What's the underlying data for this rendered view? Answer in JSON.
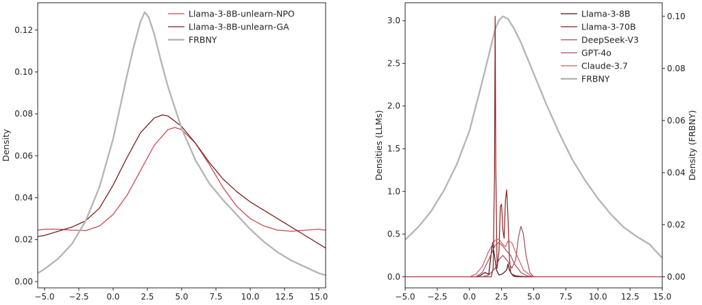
{
  "chart_data": [
    {
      "type": "line",
      "title": "",
      "xlabel": "",
      "ylabel": "Density",
      "xlim": [
        -5.5,
        15.5
      ],
      "ylim": [
        -0.003,
        0.133
      ],
      "xticks": [
        -5.0,
        -2.5,
        0.0,
        2.5,
        5.0,
        7.5,
        10.0,
        12.5,
        15.0
      ],
      "xtick_labels": [
        "−5.0",
        "−2.5",
        "0.0",
        "2.5",
        "5.0",
        "7.5",
        "10.0",
        "12.5",
        "15.0"
      ],
      "yticks": [
        0.0,
        0.02,
        0.04,
        0.06,
        0.08,
        0.1,
        0.12
      ],
      "ytick_labels": [
        "0.00",
        "0.02",
        "0.04",
        "0.06",
        "0.08",
        "0.10",
        "0.12"
      ],
      "grid": false,
      "legend": "top-right",
      "series": [
        {
          "name": "Llama-3-8B-unlearn-NPO",
          "color": "#c8474f",
          "width": 1.3,
          "x": [
            -5.5,
            -5,
            -4,
            -3,
            -2,
            -1,
            0,
            1,
            2,
            3,
            4,
            4.5,
            5,
            6,
            7,
            8,
            9,
            10,
            11,
            12,
            13,
            14,
            15,
            15.5
          ],
          "y": [
            0.0245,
            0.025,
            0.025,
            0.0245,
            0.0243,
            0.0265,
            0.032,
            0.041,
            0.053,
            0.065,
            0.0725,
            0.0735,
            0.0725,
            0.066,
            0.056,
            0.045,
            0.036,
            0.03,
            0.0265,
            0.0245,
            0.024,
            0.0245,
            0.025,
            0.0245
          ]
        },
        {
          "name": "Llama-3-8B-unlearn-GA",
          "color": "#7a1a1a",
          "width": 1.3,
          "x": [
            -5.5,
            -5,
            -4,
            -3,
            -2,
            -1,
            0,
            1,
            2,
            3,
            3.6,
            4,
            5,
            6,
            7,
            8,
            9,
            10,
            11,
            12,
            13,
            14,
            15,
            15.5
          ],
          "y": [
            0.0215,
            0.022,
            0.024,
            0.026,
            0.029,
            0.035,
            0.046,
            0.059,
            0.071,
            0.078,
            0.0795,
            0.079,
            0.074,
            0.066,
            0.057,
            0.049,
            0.043,
            0.038,
            0.034,
            0.03,
            0.026,
            0.022,
            0.018,
            0.016
          ]
        },
        {
          "name": "FRBNY",
          "color": "#b5b5b5",
          "width": 2.4,
          "x": [
            -5.5,
            -5,
            -4,
            -3,
            -2,
            -1,
            0,
            1,
            1.5,
            2,
            2.3,
            2.6,
            3,
            3.5,
            4,
            5,
            6,
            7,
            8,
            9,
            10,
            11,
            12,
            13,
            14,
            15,
            15.5
          ],
          "y": [
            0.004,
            0.006,
            0.011,
            0.018,
            0.029,
            0.045,
            0.068,
            0.098,
            0.112,
            0.124,
            0.1285,
            0.126,
            0.118,
            0.105,
            0.093,
            0.073,
            0.058,
            0.047,
            0.039,
            0.032,
            0.025,
            0.019,
            0.014,
            0.01,
            0.007,
            0.004,
            0.003
          ]
        }
      ]
    },
    {
      "type": "line",
      "title": "",
      "xlabel": "",
      "ylabel": "Densities (LLMs)",
      "y2label": "Density (FRBNY)",
      "xlim": [
        -5.0,
        15.0
      ],
      "ylim": [
        -0.13,
        3.21
      ],
      "y2lim": [
        -0.00426,
        0.1052
      ],
      "xticks": [
        -5.0,
        -2.5,
        0.0,
        2.5,
        5.0,
        7.5,
        10.0,
        12.5,
        15.0
      ],
      "xtick_labels": [
        "−5.0",
        "−2.5",
        "0.0",
        "2.5",
        "5.0",
        "7.5",
        "10.0",
        "12.5",
        "15.0"
      ],
      "yticks": [
        0.0,
        0.5,
        1.0,
        1.5,
        2.0,
        2.5,
        3.0
      ],
      "ytick_labels": [
        "0.0",
        "0.5",
        "1.0",
        "1.5",
        "2.0",
        "2.5",
        "3.0"
      ],
      "y2ticks": [
        0.0,
        0.02,
        0.04,
        0.06,
        0.08,
        0.1
      ],
      "y2tick_labels": [
        "0.00",
        "0.02",
        "0.04",
        "0.06",
        "0.08",
        "0.10"
      ],
      "grid": false,
      "legend": "top-right",
      "series": [
        {
          "name": "Llama-3-8B",
          "color": "#3b1010",
          "width": 1.2,
          "axis": "left",
          "x": [
            -5,
            0.5,
            0.8,
            1.0,
            1.2,
            1.5,
            1.8,
            1.95,
            2.1,
            2.3,
            2.5,
            2.7,
            2.9,
            3.0,
            3.1,
            3.3,
            3.6,
            4.0,
            4.5,
            15
          ],
          "y": [
            0,
            0,
            0.01,
            0.03,
            0.05,
            0.03,
            0.4,
            0.25,
            0.08,
            0.02,
            0.03,
            0.05,
            0.08,
            0.15,
            0.08,
            0.03,
            0.01,
            0.005,
            0,
            0
          ]
        },
        {
          "name": "Llama-3-70B",
          "color": "#8a1c1c",
          "width": 1.2,
          "axis": "left",
          "x": [
            -5,
            1.5,
            1.7,
            1.85,
            1.95,
            2.0,
            2.05,
            2.15,
            2.3,
            2.4,
            2.5,
            2.6,
            2.7,
            2.8,
            2.9,
            3.0,
            3.1,
            3.2,
            3.4,
            3.6,
            15
          ],
          "y": [
            0,
            0,
            0,
            0.1,
            1.2,
            3.05,
            1.3,
            0.1,
            0.3,
            0.82,
            0.85,
            0.55,
            0.45,
            0.9,
            1.02,
            0.7,
            0.25,
            0.05,
            0.01,
            0,
            0
          ]
        },
        {
          "name": "DeepSeek-V3",
          "color": "#a3485a",
          "width": 1.2,
          "axis": "left",
          "x": [
            -5,
            1.0,
            1.5,
            2.0,
            2.3,
            2.6,
            3.0,
            3.3,
            3.6,
            3.8,
            4.0,
            4.2,
            4.4,
            4.7,
            5.0,
            15
          ],
          "y": [
            0,
            0,
            0.02,
            0.1,
            0.2,
            0.25,
            0.18,
            0.1,
            0.2,
            0.45,
            0.59,
            0.5,
            0.25,
            0.05,
            0,
            0
          ]
        },
        {
          "name": "GPT-4o",
          "color": "#b0465e",
          "width": 1.2,
          "axis": "left",
          "x": [
            -5,
            0.5,
            1.0,
            1.5,
            2.0,
            2.3,
            2.6,
            2.9,
            3.2,
            3.5,
            4.0,
            4.5,
            5.0,
            15
          ],
          "y": [
            0,
            0,
            0.05,
            0.2,
            0.37,
            0.4,
            0.36,
            0.3,
            0.25,
            0.15,
            0.05,
            0.01,
            0,
            0
          ]
        },
        {
          "name": "Claude-3.7",
          "color": "#cf5a5a",
          "width": 1.2,
          "axis": "left",
          "x": [
            -5,
            0,
            0.5,
            1.0,
            1.5,
            2.0,
            2.3,
            2.6,
            2.8,
            3.0,
            3.3,
            3.7,
            4.2,
            4.8,
            5.3,
            15
          ],
          "y": [
            0,
            0,
            0.03,
            0.12,
            0.3,
            0.43,
            0.44,
            0.38,
            0.35,
            0.42,
            0.4,
            0.25,
            0.08,
            0.01,
            0,
            0
          ]
        },
        {
          "name": "FRBNY",
          "color": "#b5b5b5",
          "width": 2.4,
          "axis": "right",
          "x": [
            -5,
            -4,
            -3,
            -2,
            -1,
            0,
            1,
            1.5,
            2,
            2.3,
            2.6,
            3,
            3.5,
            4,
            5,
            6,
            7,
            8,
            9,
            10,
            11,
            12,
            13,
            14,
            15
          ],
          "y": [
            0.0142,
            0.019,
            0.025,
            0.033,
            0.043,
            0.056,
            0.075,
            0.085,
            0.095,
            0.0985,
            0.1,
            0.099,
            0.095,
            0.09,
            0.078,
            0.066,
            0.055,
            0.045,
            0.037,
            0.03,
            0.024,
            0.019,
            0.0155,
            0.0125,
            0.0072
          ]
        }
      ]
    }
  ]
}
